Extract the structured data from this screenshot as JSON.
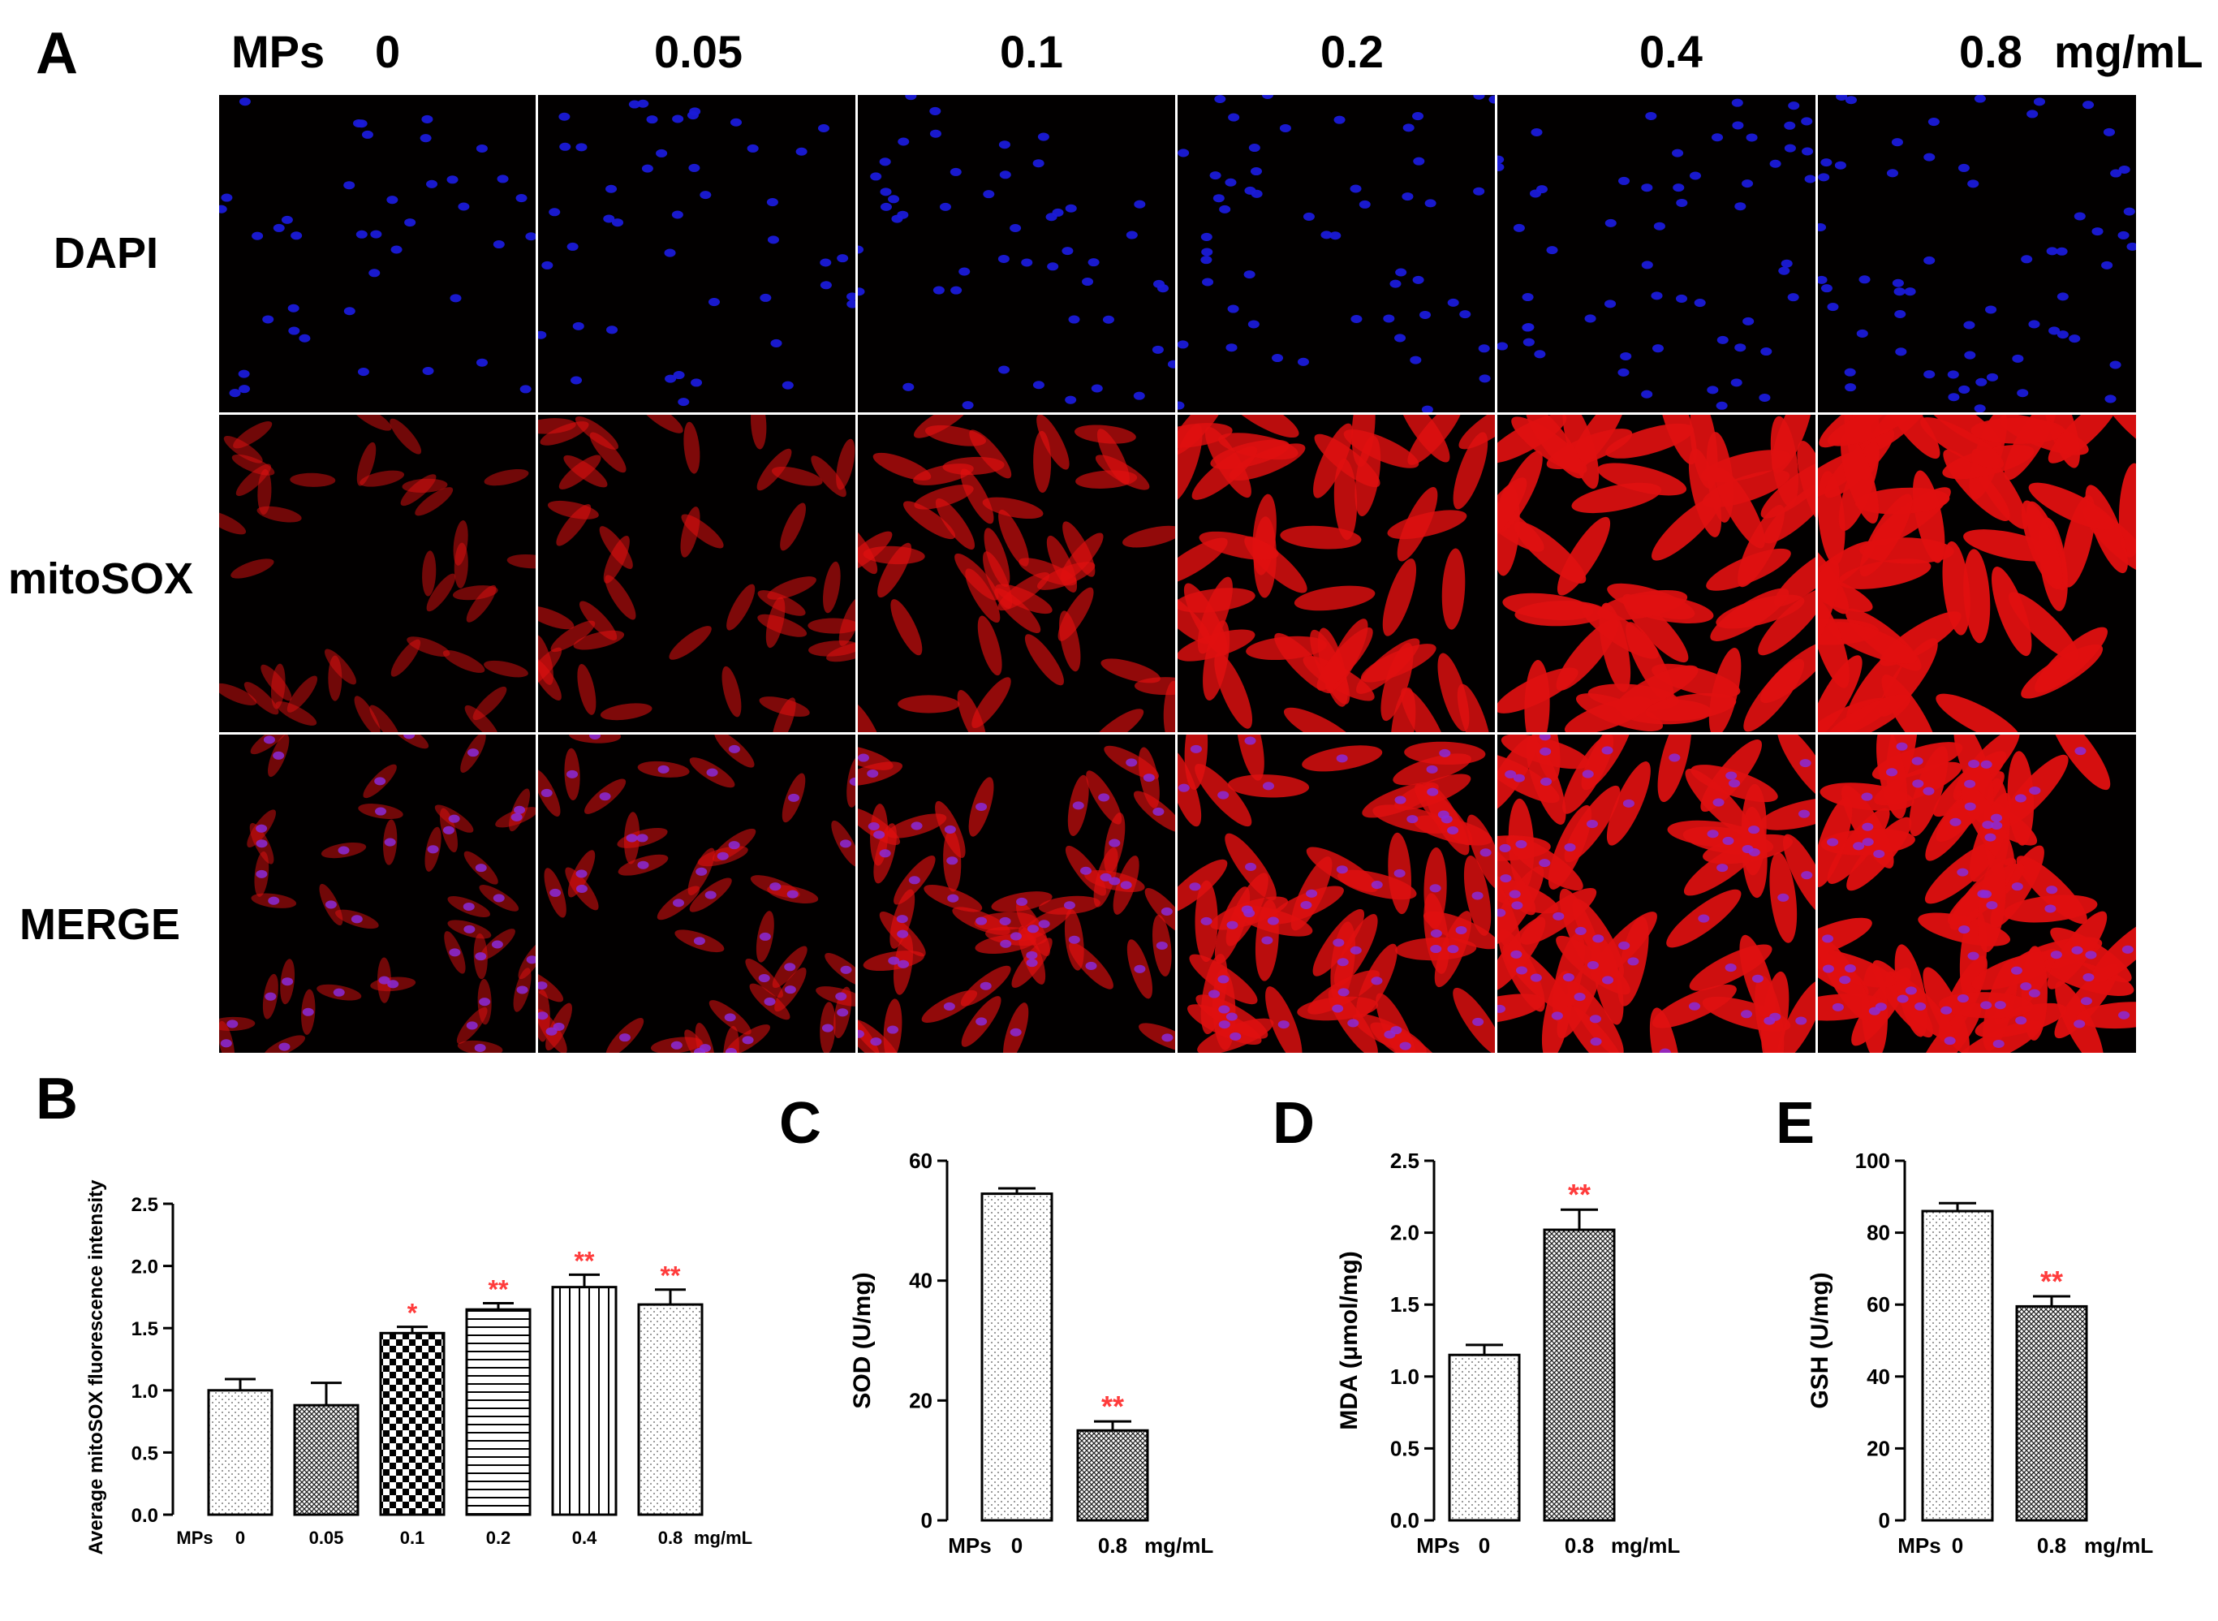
{
  "panel_a": {
    "letter": "A",
    "treatment_label": "MPs",
    "unit": "mg/mL",
    "concentrations": [
      "0",
      "0.05",
      "0.1",
      "0.2",
      "0.4",
      "0.8"
    ],
    "rows": [
      "DAPI",
      "mitoSOX",
      "MERGE"
    ],
    "colors": {
      "nucleus": "#1a1ad8",
      "mitosox": "#e01010",
      "merge_nucleus": "#8a2ad8",
      "background": "#020000"
    }
  },
  "chart_data": [
    {
      "panel": "B",
      "type": "bar",
      "ylabel": "Average mitoSOX fluorescence intensity",
      "x_prefix": "MPs",
      "x_unit": "mg/mL",
      "categories": [
        "0",
        "0.05",
        "0.1",
        "0.2",
        "0.4",
        "0.8"
      ],
      "values": [
        1.0,
        0.88,
        1.46,
        1.65,
        1.83,
        1.69
      ],
      "errors": [
        0.09,
        0.18,
        0.05,
        0.05,
        0.1,
        0.12
      ],
      "significance": [
        "",
        "",
        "*",
        "**",
        "**",
        "**"
      ],
      "patterns": [
        "dots-sparse",
        "crosshatch",
        "checker",
        "hlines",
        "vlines",
        "dots-sparse"
      ],
      "ylim": [
        0,
        2.5
      ],
      "yticks": [
        "0.0",
        "0.5",
        "1.0",
        "1.5",
        "2.0",
        "2.5"
      ],
      "significance_color": "#ff3b3b"
    },
    {
      "panel": "C",
      "type": "bar",
      "ylabel": "SOD (U/mg)",
      "x_prefix": "MPs",
      "x_unit": "mg/mL",
      "categories": [
        "0",
        "0.8"
      ],
      "values": [
        54.5,
        15.0
      ],
      "errors": [
        0.9,
        1.5
      ],
      "significance": [
        "",
        "**"
      ],
      "patterns": [
        "dots-sparse",
        "crosshatch"
      ],
      "ylim": [
        0,
        60
      ],
      "yticks": [
        "0",
        "20",
        "40",
        "60"
      ],
      "significance_color": "#ff3b3b"
    },
    {
      "panel": "D",
      "type": "bar",
      "ylabel": "MDA (μmol/mg)",
      "x_prefix": "MPs",
      "x_unit": "mg/mL",
      "categories": [
        "0",
        "0.8"
      ],
      "values": [
        1.15,
        2.02
      ],
      "errors": [
        0.07,
        0.14
      ],
      "significance": [
        "",
        "**"
      ],
      "patterns": [
        "dots-sparse",
        "crosshatch"
      ],
      "ylim": [
        0,
        2.5
      ],
      "yticks": [
        "0.0",
        "0.5",
        "1.0",
        "1.5",
        "2.0",
        "2.5"
      ],
      "significance_color": "#ff3b3b"
    },
    {
      "panel": "E",
      "type": "bar",
      "ylabel": "GSH (U/mg)",
      "x_prefix": "MPs",
      "x_unit": "mg/mL",
      "categories": [
        "0",
        "0.8"
      ],
      "values": [
        86.0,
        59.5
      ],
      "errors": [
        2.2,
        2.8
      ],
      "significance": [
        "",
        "**"
      ],
      "patterns": [
        "dots-sparse",
        "crosshatch"
      ],
      "ylim": [
        0,
        100
      ],
      "yticks": [
        "0",
        "20",
        "40",
        "60",
        "80",
        "100"
      ],
      "significance_color": "#ff3b3b"
    }
  ]
}
